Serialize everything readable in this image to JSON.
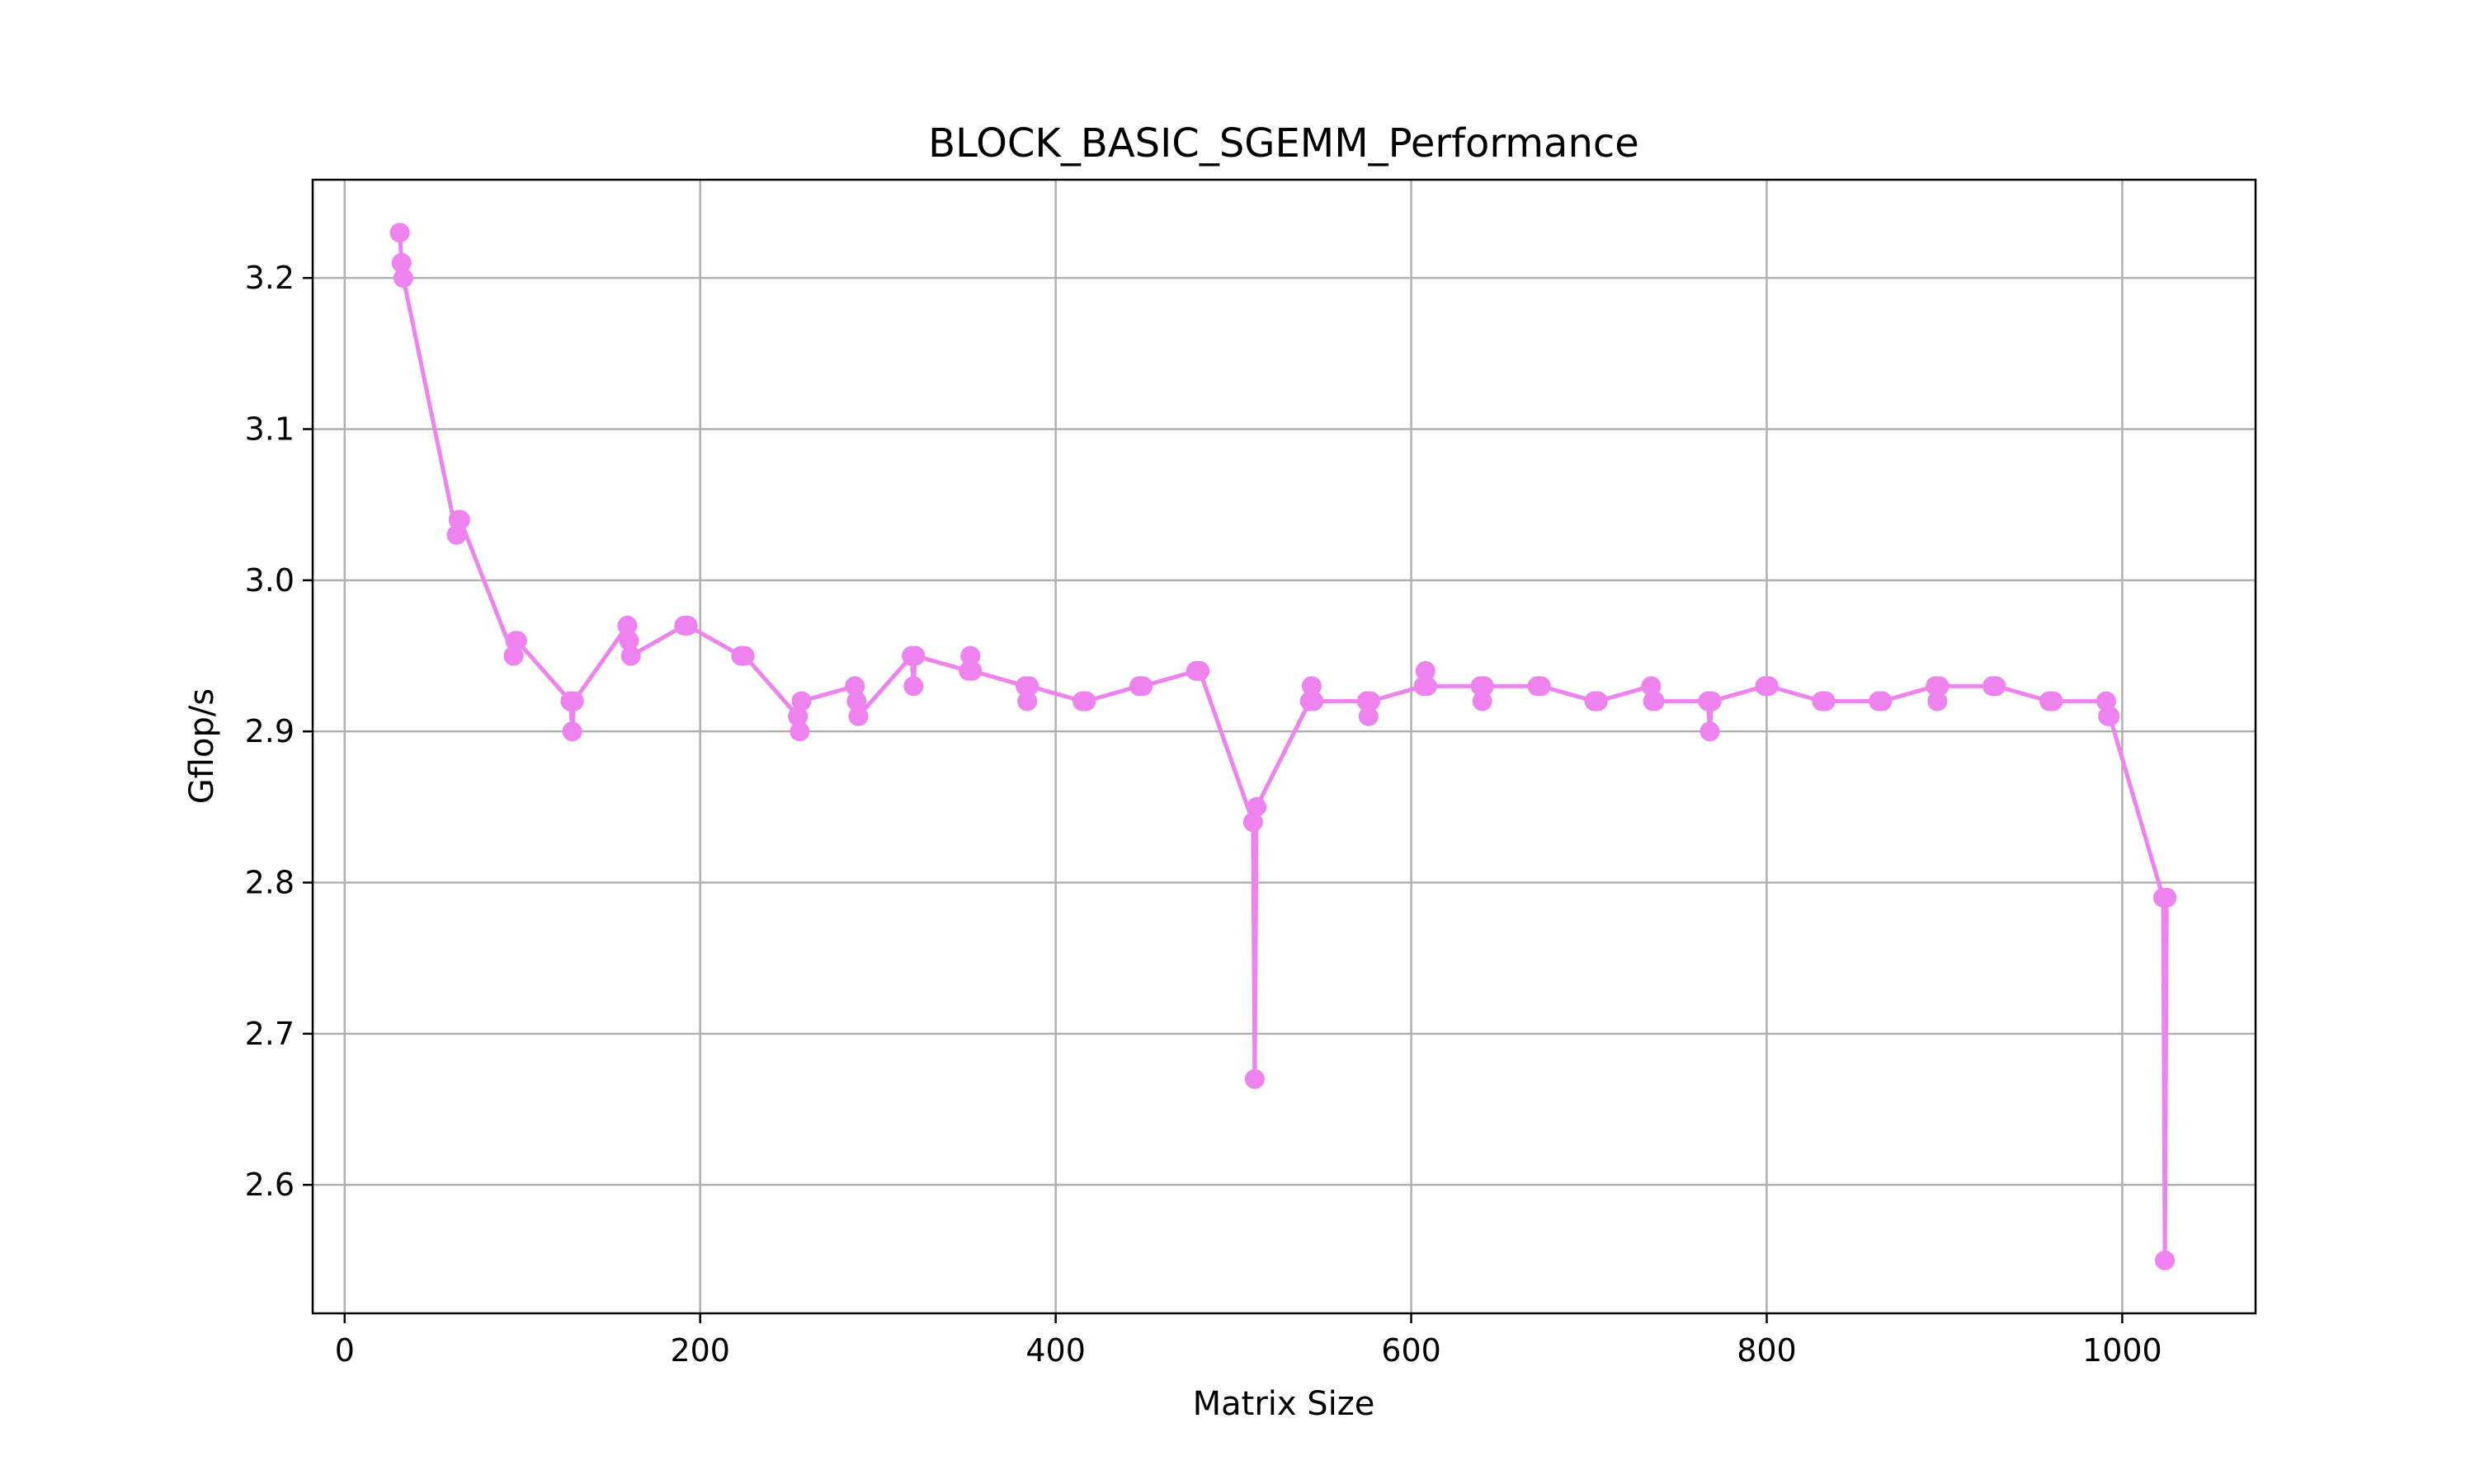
{
  "chart_data": {
    "type": "line",
    "title": "BLOCK_BASIC_SGEMM_Performance",
    "xlabel": "Matrix Size",
    "ylabel": "Gflop/s",
    "xlim": [
      -18,
      1075
    ],
    "ylim": [
      2.515,
      3.265
    ],
    "grid": true,
    "xticks": [
      0,
      200,
      400,
      600,
      800,
      1000
    ],
    "yticks": [
      2.6,
      2.7,
      2.8,
      2.9,
      3.0,
      3.1,
      3.2
    ],
    "xtick_labels": [
      "0",
      "200",
      "400",
      "600",
      "800",
      "1000"
    ],
    "ytick_labels": [
      "2.6",
      "2.7",
      "2.8",
      "2.9",
      "3.0",
      "3.1",
      "3.2"
    ],
    "series": [
      {
        "color": "#ee82ee",
        "marker": "circle",
        "points": [
          [
            31,
            3.23
          ],
          [
            32,
            3.21
          ],
          [
            33,
            3.2
          ],
          [
            63,
            3.03
          ],
          [
            64,
            3.04
          ],
          [
            65,
            3.04
          ],
          [
            95,
            2.95
          ],
          [
            96,
            2.96
          ],
          [
            97,
            2.96
          ],
          [
            127,
            2.92
          ],
          [
            128,
            2.9
          ],
          [
            129,
            2.92
          ],
          [
            159,
            2.97
          ],
          [
            160,
            2.96
          ],
          [
            161,
            2.95
          ],
          [
            191,
            2.97
          ],
          [
            192,
            2.97
          ],
          [
            193,
            2.97
          ],
          [
            223,
            2.95
          ],
          [
            224,
            2.95
          ],
          [
            225,
            2.95
          ],
          [
            255,
            2.91
          ],
          [
            256,
            2.9
          ],
          [
            257,
            2.92
          ],
          [
            287,
            2.93
          ],
          [
            288,
            2.92
          ],
          [
            289,
            2.91
          ],
          [
            319,
            2.95
          ],
          [
            320,
            2.93
          ],
          [
            321,
            2.95
          ],
          [
            351,
            2.94
          ],
          [
            352,
            2.95
          ],
          [
            353,
            2.94
          ],
          [
            383,
            2.93
          ],
          [
            384,
            2.92
          ],
          [
            385,
            2.93
          ],
          [
            415,
            2.92
          ],
          [
            416,
            2.92
          ],
          [
            417,
            2.92
          ],
          [
            447,
            2.93
          ],
          [
            448,
            2.93
          ],
          [
            449,
            2.93
          ],
          [
            479,
            2.94
          ],
          [
            480,
            2.94
          ],
          [
            481,
            2.94
          ],
          [
            511,
            2.84
          ],
          [
            512,
            2.67
          ],
          [
            513,
            2.85
          ],
          [
            543,
            2.92
          ],
          [
            544,
            2.93
          ],
          [
            545,
            2.92
          ],
          [
            575,
            2.92
          ],
          [
            576,
            2.91
          ],
          [
            577,
            2.92
          ],
          [
            607,
            2.93
          ],
          [
            608,
            2.94
          ],
          [
            609,
            2.93
          ],
          [
            639,
            2.93
          ],
          [
            640,
            2.92
          ],
          [
            641,
            2.93
          ],
          [
            671,
            2.93
          ],
          [
            672,
            2.93
          ],
          [
            673,
            2.93
          ],
          [
            703,
            2.92
          ],
          [
            704,
            2.92
          ],
          [
            705,
            2.92
          ],
          [
            735,
            2.93
          ],
          [
            736,
            2.92
          ],
          [
            737,
            2.92
          ],
          [
            767,
            2.92
          ],
          [
            768,
            2.9
          ],
          [
            769,
            2.92
          ],
          [
            799,
            2.93
          ],
          [
            800,
            2.93
          ],
          [
            801,
            2.93
          ],
          [
            831,
            2.92
          ],
          [
            832,
            2.92
          ],
          [
            833,
            2.92
          ],
          [
            863,
            2.92
          ],
          [
            864,
            2.92
          ],
          [
            865,
            2.92
          ],
          [
            895,
            2.93
          ],
          [
            896,
            2.92
          ],
          [
            897,
            2.93
          ],
          [
            927,
            2.93
          ],
          [
            928,
            2.93
          ],
          [
            929,
            2.93
          ],
          [
            959,
            2.92
          ],
          [
            960,
            2.92
          ],
          [
            961,
            2.92
          ],
          [
            991,
            2.92
          ],
          [
            992,
            2.91
          ],
          [
            993,
            2.91
          ],
          [
            1023,
            2.79
          ],
          [
            1024,
            2.55
          ],
          [
            1025,
            2.79
          ]
        ]
      }
    ]
  }
}
